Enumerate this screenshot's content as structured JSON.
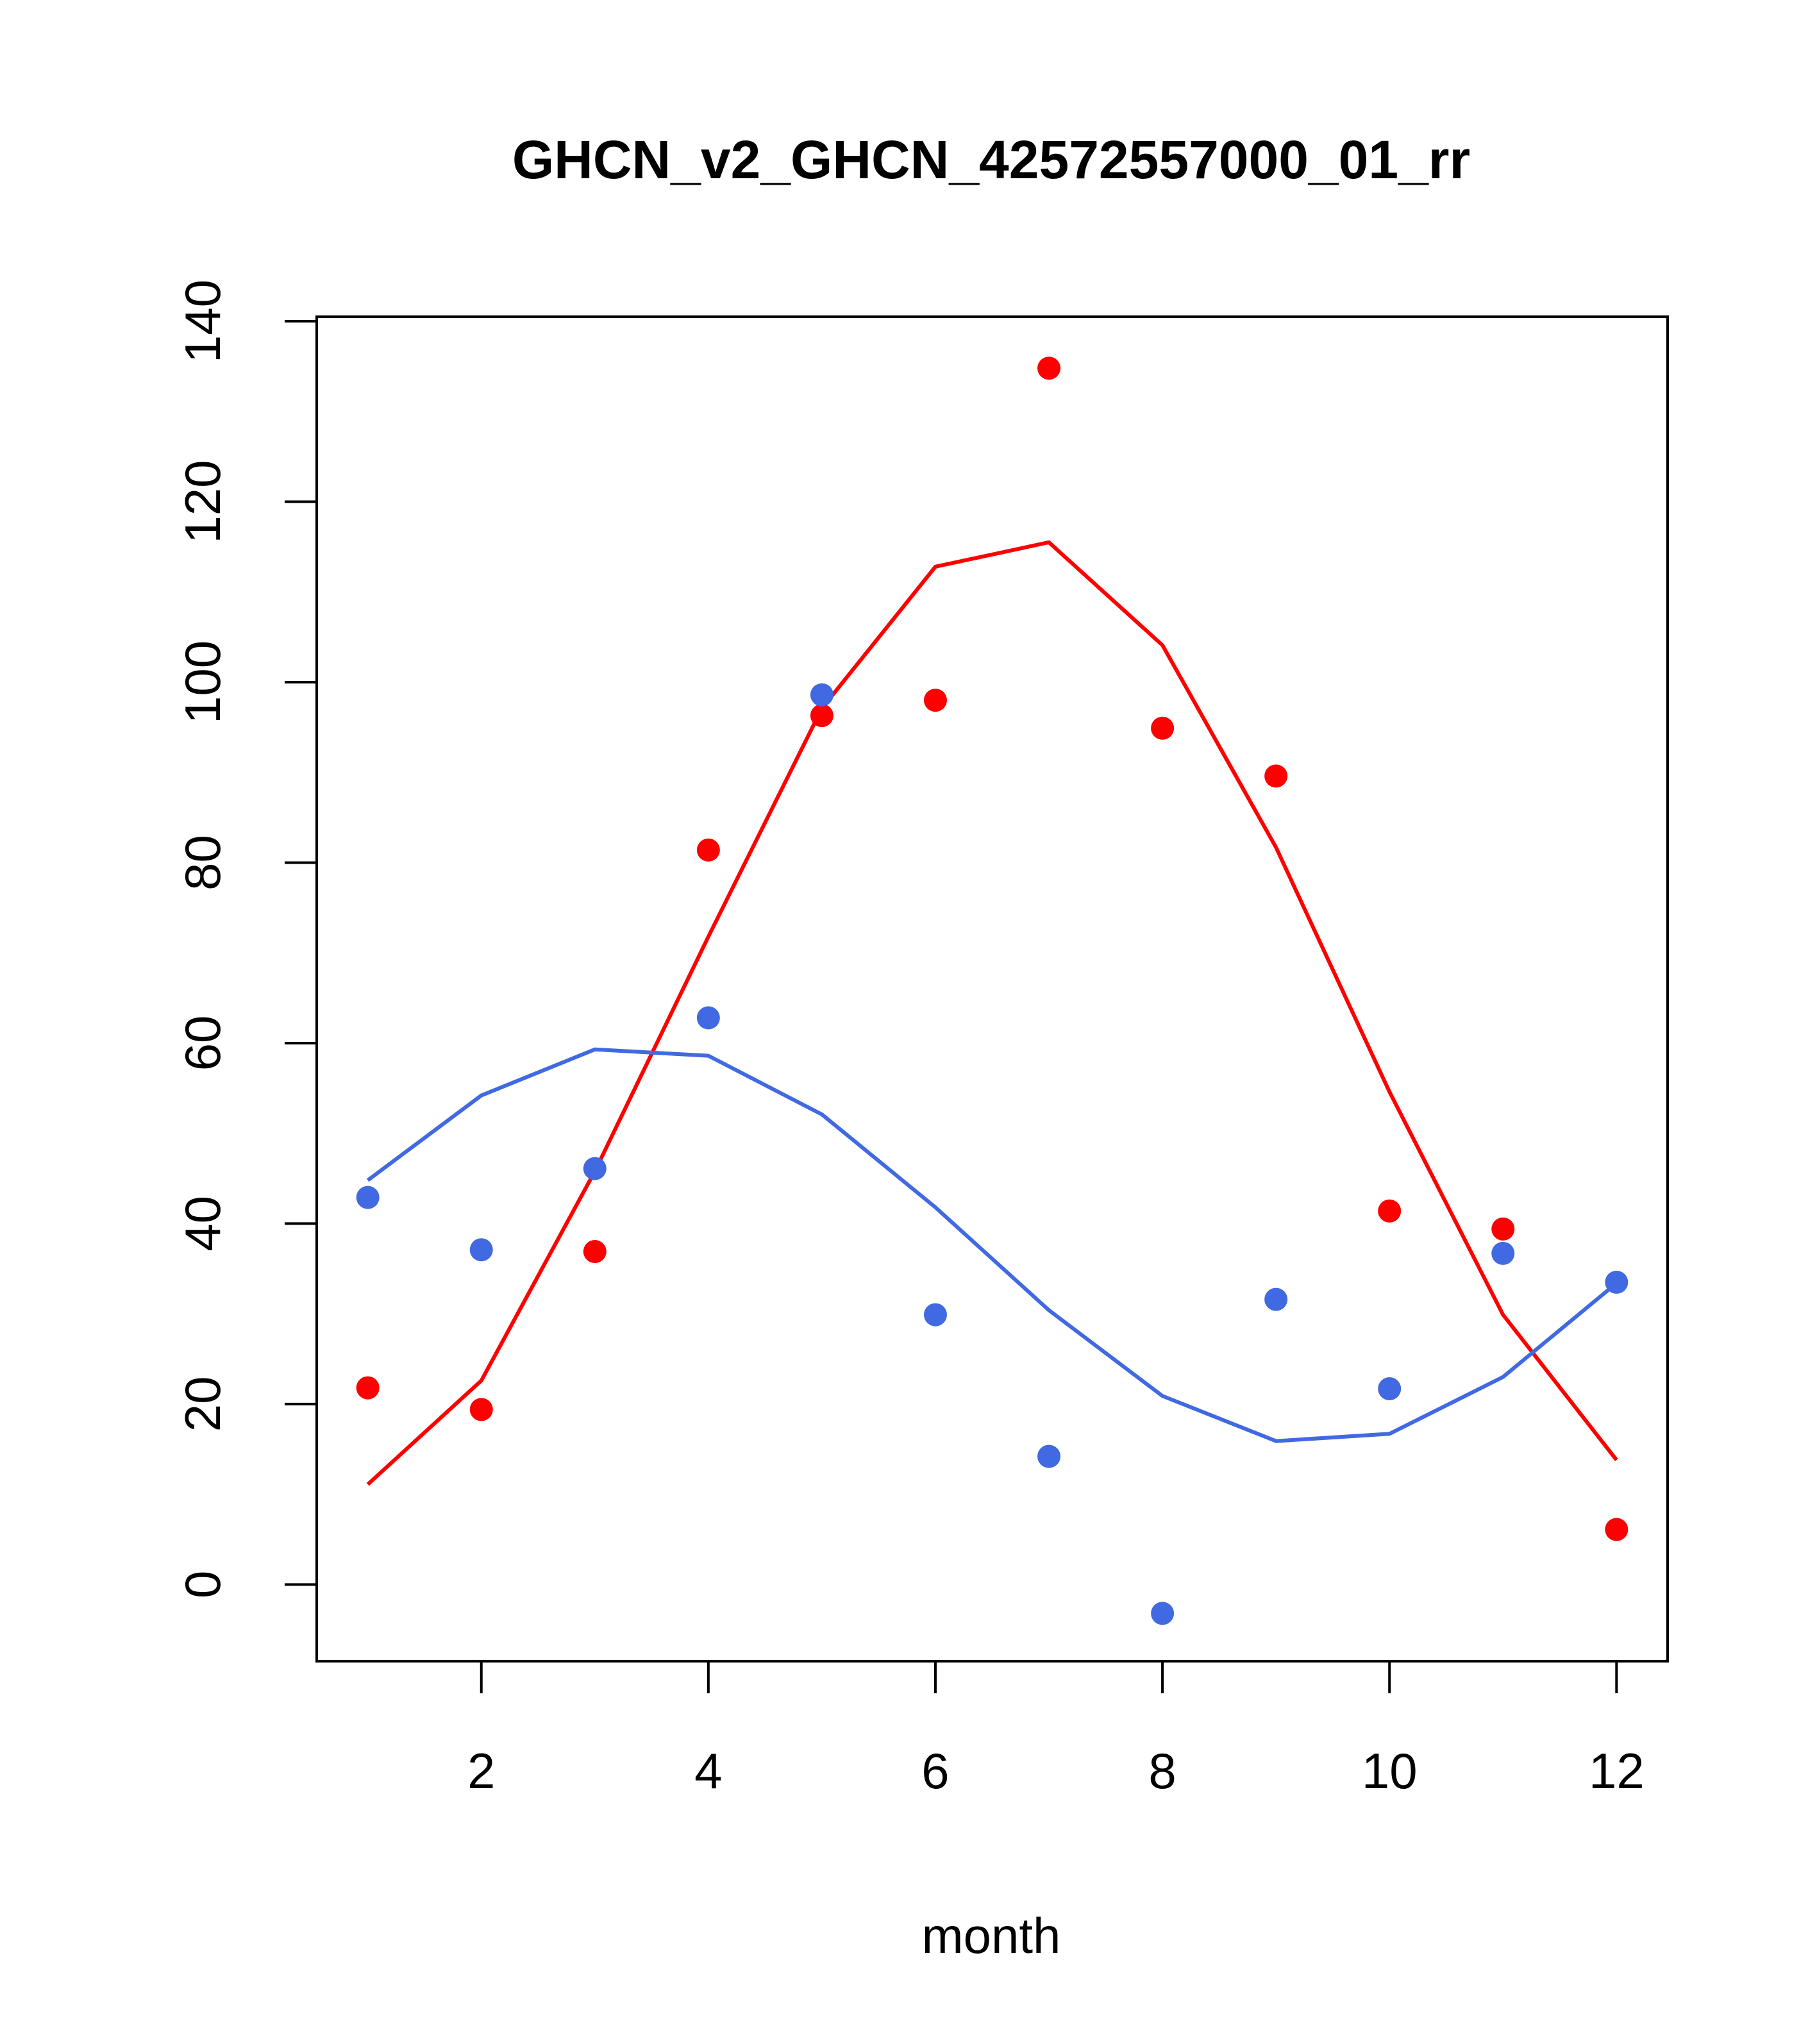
{
  "chart_data": {
    "type": "scatter",
    "title": "GHCN_v2_GHCN_42572557000_01_rr",
    "xlabel": "month",
    "ylabel": "",
    "xlim": [
      0.55,
      12.45
    ],
    "ylim": [
      -8.5,
      140.5
    ],
    "x_ticks": [
      2,
      4,
      6,
      8,
      10,
      12
    ],
    "y_ticks": [
      0,
      20,
      40,
      60,
      80,
      100,
      120,
      140
    ],
    "grid": false,
    "colors": {
      "red": "#ff0000",
      "blue": "#4169e1",
      "axis": "#000000"
    },
    "series": [
      {
        "color": "#ff0000",
        "x": [
          1,
          2,
          3,
          4,
          5,
          6,
          7,
          8,
          9,
          10,
          11,
          12
        ],
        "points": [
          21.8,
          19.4,
          36.9,
          81.4,
          96.3,
          98.0,
          134.8,
          94.9,
          89.6,
          41.4,
          39.4,
          6.1
        ],
        "line": [
          11.1,
          22.6,
          45.8,
          71.8,
          97.1,
          112.8,
          115.5,
          104.1,
          81.7,
          54.6,
          29.9,
          13.8
        ]
      },
      {
        "color": "#4169e1",
        "x": [
          1,
          2,
          3,
          4,
          5,
          6,
          7,
          8,
          9,
          10,
          11,
          12
        ],
        "points": [
          42.9,
          37.1,
          46.1,
          62.8,
          98.6,
          29.9,
          14.2,
          -3.2,
          31.6,
          21.7,
          36.7,
          33.5
        ],
        "line": [
          44.8,
          54.2,
          59.3,
          58.6,
          52.1,
          41.8,
          30.4,
          20.9,
          15.9,
          16.7,
          23.0,
          33.4
        ]
      }
    ]
  }
}
